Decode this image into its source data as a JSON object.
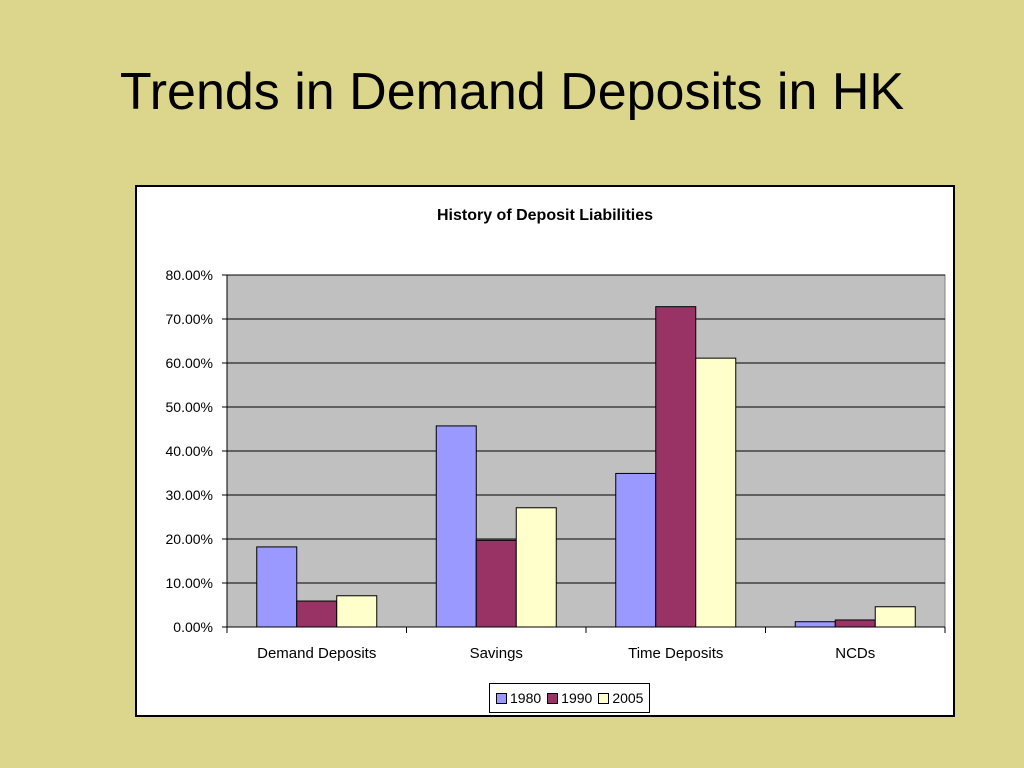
{
  "slide": {
    "title": "Trends in Demand Deposits in HK"
  },
  "chart_data": {
    "type": "bar",
    "title": "History of Deposit Liabilities",
    "xlabel": "",
    "ylabel": "",
    "categories": [
      "Demand Deposits",
      "Savings",
      "Time Deposits",
      "NCDs"
    ],
    "series": [
      {
        "name": "1980",
        "values": [
          18.2,
          45.7,
          34.9,
          1.2
        ],
        "color": "#9999ff"
      },
      {
        "name": "1990",
        "values": [
          5.9,
          19.7,
          72.8,
          1.6
        ],
        "color": "#993366"
      },
      {
        "name": "2005",
        "values": [
          7.1,
          27.1,
          61.1,
          4.6
        ],
        "color": "#ffffcc"
      }
    ],
    "ylim": [
      0,
      80
    ],
    "yticks": [
      "0.00%",
      "10.00%",
      "20.00%",
      "30.00%",
      "40.00%",
      "50.00%",
      "60.00%",
      "70.00%",
      "80.00%"
    ],
    "grid": true,
    "plot_background": "#c0c0c0",
    "legend_position": "bottom"
  }
}
